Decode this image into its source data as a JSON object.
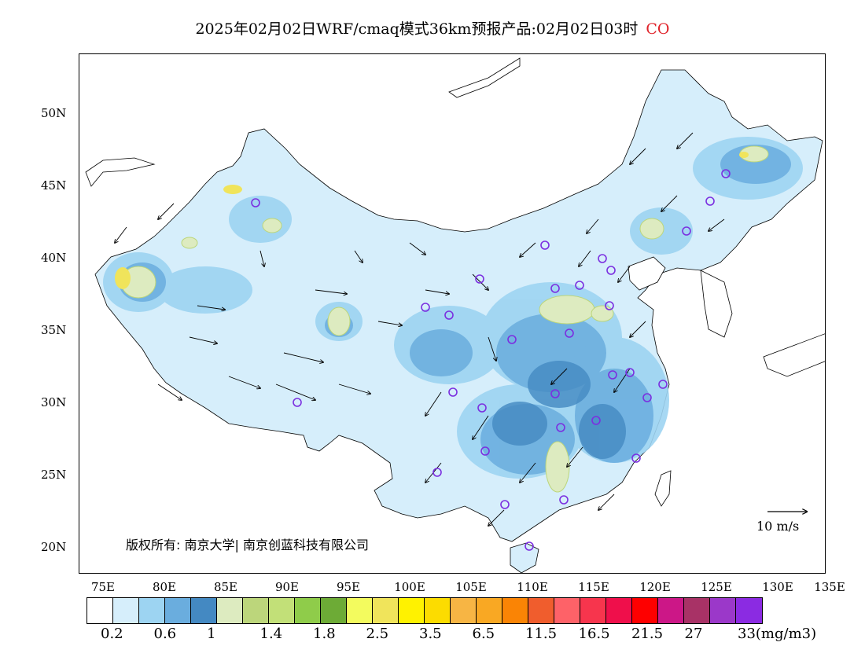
{
  "title": {
    "text": "2025年02月02日WRF/cmaq模式36km预报产品:02月02日03时",
    "pollutant": "CO"
  },
  "axes": {
    "lat_labels": [
      "50N",
      "45N",
      "40N",
      "35N",
      "30N",
      "25N",
      "20N"
    ],
    "lon_labels": [
      "75E",
      "80E",
      "85E",
      "90E",
      "95E",
      "100E",
      "105E",
      "110E",
      "115E",
      "120E",
      "125E",
      "130E",
      "135E"
    ]
  },
  "copyright": "版权所有: 南京大学| 南京创蓝科技有限公司",
  "wind_scale": {
    "label": "10 m/s"
  },
  "legend": {
    "colors": [
      "#ffffff",
      "#d6eefb",
      "#9dd4f2",
      "#6aadde",
      "#4489c2",
      "#ddebc0",
      "#bcd67b",
      "#c2e078",
      "#8fcc4a",
      "#6dab36",
      "#f3fb5e",
      "#f0e45b",
      "#fff200",
      "#fcdc00",
      "#f7b544",
      "#f9a823",
      "#fa8405",
      "#f05d2d",
      "#fe6268",
      "#f7354d",
      "#ef0f4b",
      "#fe0000",
      "#cc1787",
      "#a83266",
      "#9b38c9",
      "#8b2be2"
    ],
    "labels": [
      "0.2",
      "0.6",
      "1",
      "1.4",
      "1.8",
      "2.5",
      "3.5",
      "6.5",
      "11.5",
      "16.5",
      "21.5",
      "27",
      "33(mg/m3)"
    ]
  },
  "map": {
    "background_color": "#d6eefb",
    "sea_color": "#ffffff",
    "station_color": "#7b2fe0"
  }
}
